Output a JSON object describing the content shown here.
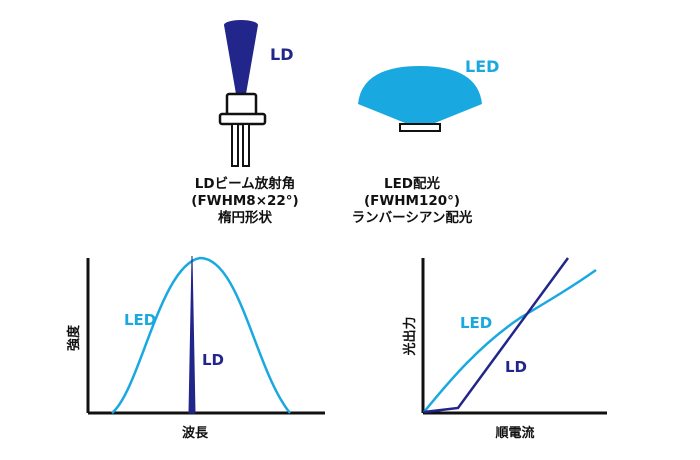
{
  "colors": {
    "ld": "#22258a",
    "led": "#1aa8e0",
    "axis": "#111111"
  },
  "top_left": {
    "tag": "LD",
    "caption": [
      "LDビーム放射角",
      "(FWHM8×22°)",
      "楕円形状"
    ]
  },
  "top_right": {
    "tag": "LED",
    "caption": [
      "LED配光",
      "(FWHM120°)",
      "ランバーシアン配光"
    ]
  },
  "spectrum_chart": {
    "ylabel": "強度",
    "xlabel": "波長",
    "led_label": "LED",
    "ld_label": "LD"
  },
  "li_chart": {
    "ylabel": "光出力",
    "xlabel": "順電流",
    "led_label": "LED",
    "ld_label": "LD"
  }
}
